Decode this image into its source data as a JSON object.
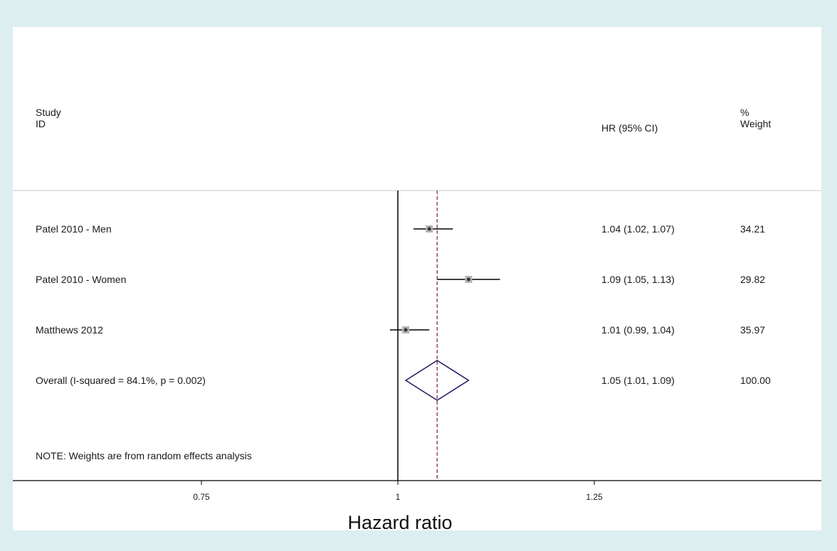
{
  "header": {
    "study_line1": "Study",
    "study_line2": "ID",
    "hr_label": "HR (95% CI)",
    "weight_line1": "%",
    "weight_line2": "Weight"
  },
  "note": "NOTE: Weights are from random effects analysis",
  "colors": {
    "background": "#ddeef0",
    "panel": "#ffffff",
    "reference_line": "#000000",
    "overall_line": "#8b1a2b",
    "diamond": "#1f1a5e",
    "marker_box": "#b3b3b3",
    "marker_dot": "#333333",
    "ci_line": "#000000"
  },
  "chart_data": {
    "type": "forest",
    "xlabel": "Hazard ratio",
    "xlim": [
      0.57,
      1.57
    ],
    "xticks": [
      {
        "value": 0.75,
        "label": "0.75"
      },
      {
        "value": 1,
        "label": "1"
      },
      {
        "value": 1.25,
        "label": "1.25"
      }
    ],
    "reference_value": 1,
    "overall_value": 1.05,
    "studies": [
      {
        "name": "Patel 2010 - Men",
        "hr": 1.04,
        "lo": 1.02,
        "hi": 1.07,
        "hr_text": "1.04 (1.02, 1.07)",
        "weight": "34.21"
      },
      {
        "name": "Patel 2010 - Women",
        "hr": 1.09,
        "lo": 1.05,
        "hi": 1.13,
        "hr_text": "1.09 (1.05, 1.13)",
        "weight": "29.82"
      },
      {
        "name": "Matthews 2012",
        "hr": 1.01,
        "lo": 0.99,
        "hi": 1.04,
        "hr_text": "1.01 (0.99, 1.04)",
        "weight": "35.97"
      }
    ],
    "overall": {
      "name": "Overall  (I-squared = 84.1%, p = 0.002)",
      "hr": 1.05,
      "lo": 1.01,
      "hi": 1.09,
      "hr_text": "1.05 (1.01, 1.09)",
      "weight": "100.00"
    }
  }
}
